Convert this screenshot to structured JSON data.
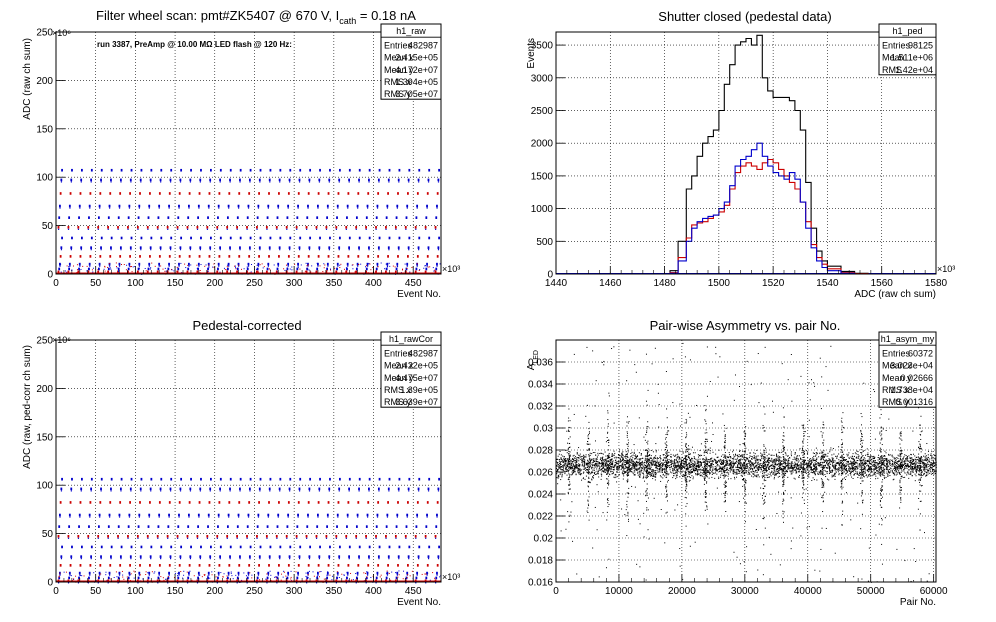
{
  "chart_data": [
    {
      "id": "raw",
      "type": "scatter",
      "title": "Filter wheel scan: pmt#ZK5407 @   670 V, I",
      "title_sub": "cath",
      "title_tail": " = 0.18 nA",
      "annotation": "run 3387, PreAmp @ 10.00 MΩ LED flash @  120 Hz:",
      "xlabel": "Event No.",
      "ylabel": "ADC (raw ch sum)",
      "x_multiplier": "×10³",
      "y_multiplier": "×10⁶",
      "xlim": [
        0,
        485
      ],
      "ylim": [
        0,
        250
      ],
      "xticks": [
        "0",
        "50",
        "100",
        "150",
        "200",
        "250",
        "300",
        "350",
        "400",
        "450"
      ],
      "yticks": [
        "0",
        "50",
        "100",
        "150",
        "200",
        "250"
      ],
      "grid": true,
      "levels": [
        2,
        5,
        10,
        18,
        27,
        37,
        48,
        58,
        70,
        83,
        97,
        107
      ],
      "stats": {
        "name": "h1_raw",
        "rows": [
          [
            "Entries",
            "482987"
          ],
          [
            "Mean x",
            "2.415e+05"
          ],
          [
            "Mean y",
            "4.172e+07"
          ],
          [
            "RMS x",
            "1.394e+05"
          ],
          [
            "RMS y",
            "3.705e+07"
          ]
        ]
      }
    },
    {
      "id": "ped",
      "type": "line",
      "title": "Shutter closed (pedestal data)",
      "xlabel": "ADC (raw ch sum)",
      "ylabel": "Events",
      "x_multiplier": "×10³",
      "xlim": [
        1440,
        1580
      ],
      "ylim": [
        0,
        3700
      ],
      "xticks": [
        "1440",
        "1460",
        "1480",
        "1500",
        "1520",
        "1540",
        "1560",
        "1580"
      ],
      "yticks": [
        "0",
        "500",
        "1000",
        "1500",
        "2000",
        "2500",
        "3000",
        "3500"
      ],
      "grid": true,
      "x": [
        1482,
        1485,
        1488,
        1490,
        1492,
        1494,
        1496,
        1498,
        1500,
        1502,
        1504,
        1506,
        1508,
        1510,
        1512,
        1514,
        1516,
        1518,
        1520,
        1522,
        1524,
        1526,
        1528,
        1530,
        1532,
        1534,
        1536,
        1538,
        1540,
        1545,
        1550,
        1555
      ],
      "series": [
        {
          "color": "#000000",
          "values": [
            50,
            500,
            1300,
            1500,
            1800,
            2000,
            2100,
            2200,
            2500,
            2900,
            3200,
            3500,
            3550,
            3600,
            3500,
            3650,
            3000,
            2800,
            2700,
            2700,
            2700,
            2650,
            2500,
            2200,
            1400,
            700,
            350,
            200,
            120,
            40,
            10,
            0
          ]
        },
        {
          "color": "#cc0000",
          "values": [
            20,
            250,
            550,
            750,
            780,
            800,
            850,
            900,
            950,
            1050,
            1300,
            1550,
            1650,
            1700,
            1650,
            1600,
            1700,
            1750,
            1700,
            1600,
            1500,
            1400,
            1300,
            1100,
            800,
            450,
            250,
            150,
            80,
            20,
            5,
            0
          ]
        },
        {
          "color": "#0000cc",
          "values": [
            10,
            200,
            500,
            700,
            800,
            850,
            880,
            900,
            1000,
            1100,
            1350,
            1650,
            1750,
            1800,
            1900,
            2000,
            1800,
            1650,
            1550,
            1500,
            1450,
            1550,
            1450,
            1100,
            700,
            400,
            200,
            100,
            50,
            10,
            0,
            0
          ]
        }
      ],
      "stats": {
        "name": "h1_ped",
        "rows": [
          [
            "Entries",
            "98125"
          ],
          [
            "Mean",
            "1.511e+06"
          ],
          [
            "RMS",
            "1.42e+04"
          ]
        ]
      }
    },
    {
      "id": "rawcor",
      "type": "scatter",
      "title": "Pedestal-corrected",
      "xlabel": "Event No.",
      "ylabel": "ADC (raw, ped-corr ch sum)",
      "x_multiplier": "×10³",
      "y_multiplier": "×10⁶",
      "xlim": [
        0,
        485
      ],
      "ylim": [
        0,
        250
      ],
      "xticks": [
        "0",
        "50",
        "100",
        "150",
        "200",
        "250",
        "300",
        "350",
        "400",
        "450"
      ],
      "yticks": [
        "0",
        "50",
        "100",
        "150",
        "200",
        "250"
      ],
      "grid": true,
      "levels": [
        1,
        4,
        9,
        17,
        26,
        36,
        47,
        57,
        69,
        82,
        96,
        106
      ],
      "stats": {
        "name": "h1_rawCor",
        "rows": [
          [
            "Entries",
            "482987"
          ],
          [
            "Mean x",
            "2.422e+05"
          ],
          [
            "Mean y",
            "4.475e+07"
          ],
          [
            "RMS x",
            "1.39e+05"
          ],
          [
            "RMS y",
            "3.639e+07"
          ]
        ]
      }
    },
    {
      "id": "asym",
      "type": "scatter",
      "title": "Pair-wise Asymmetry vs. pair No.",
      "xlabel": "Pair No.",
      "ylabel": "A",
      "ylabel_sub": "LED",
      "xlim": [
        0,
        60372
      ],
      "ylim": [
        0.016,
        0.038
      ],
      "xticks": [
        "0",
        "10000",
        "20000",
        "30000",
        "40000",
        "50000",
        "60000"
      ],
      "yticks": [
        "0.016",
        "0.018",
        "0.02",
        "0.022",
        "0.024",
        "0.026",
        "0.028",
        "0.03",
        "0.032",
        "0.034",
        "0.036"
      ],
      "grid": true,
      "band_center": 0.02666,
      "stats": {
        "name": "h1_asym_my",
        "rows": [
          [
            "Entries",
            "60372"
          ],
          [
            "Mean x",
            "3.023e+04"
          ],
          [
            "Mean y",
            "0.02666"
          ],
          [
            "RMS x",
            "1.738e+04"
          ],
          [
            "RMS y",
            "0.001316"
          ]
        ]
      }
    }
  ]
}
